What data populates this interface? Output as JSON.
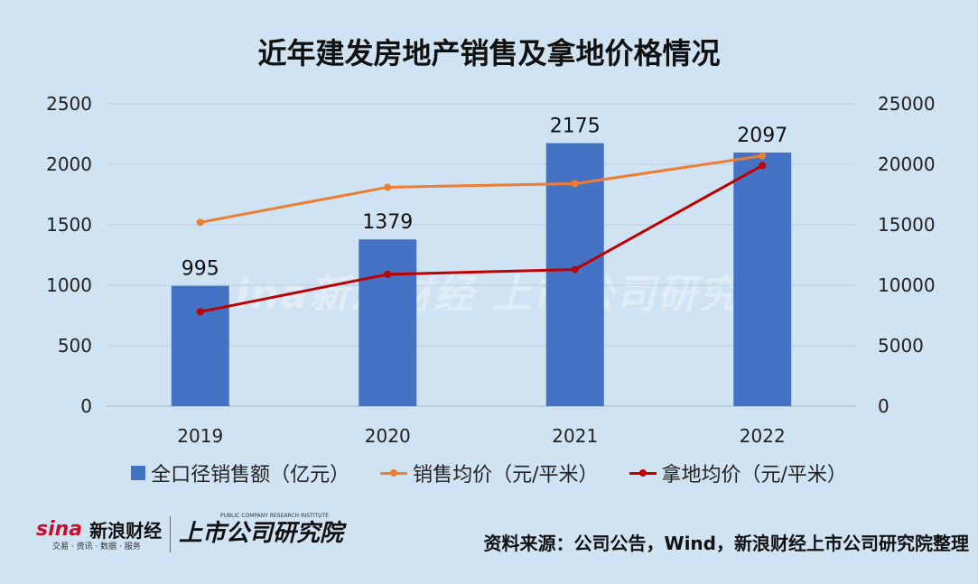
{
  "title": "近年建发房地产销售及拿地价格情况",
  "watermark": "sina新浪财经  上市公司研究院",
  "legend": {
    "bar": "全口径销售额（亿元）",
    "line1": "销售均价（元/平米）",
    "line2": "拿地均价（元/平米）"
  },
  "footer": {
    "logo_sina": "sina",
    "logo_name": "新浪财经",
    "logo_sub": "交易 · 资讯 · 数据 · 服务",
    "logo2_main": "上市公司研究院",
    "logo2_sub": "PUBLIC COMPANY RESEARCH INSTITUTE",
    "source": "资料来源：公司公告，Wind，新浪财经上市公司研究院整理"
  },
  "colors": {
    "bar": "#4472c4",
    "sales_price": "#ed7d31",
    "land_price": "#c00000",
    "background": "#cfe3f3"
  },
  "chart_data": {
    "type": "bar",
    "categories": [
      "2019",
      "2020",
      "2021",
      "2022"
    ],
    "series": [
      {
        "name": "全口径销售额（亿元）",
        "type": "bar",
        "axis": "left",
        "values": [
          995,
          1379,
          2175,
          2097
        ]
      },
      {
        "name": "销售均价（元/平米）",
        "type": "line",
        "axis": "right",
        "values": [
          15200,
          18100,
          18400,
          20700
        ]
      },
      {
        "name": "拿地均价（元/平米）",
        "type": "line",
        "axis": "right",
        "values": [
          7800,
          10900,
          11300,
          19900
        ]
      }
    ],
    "y_left": {
      "range": [
        0,
        2500
      ],
      "ticks": [
        "0",
        "500",
        "1000",
        "1500",
        "2000",
        "2500"
      ]
    },
    "y_right": {
      "range": [
        0,
        25000
      ],
      "ticks": [
        "0",
        "5000",
        "10000",
        "15000",
        "20000",
        "25000"
      ]
    },
    "data_labels": [
      "995",
      "1379",
      "2175",
      "2097"
    ],
    "grid": true,
    "legend_position": "bottom"
  }
}
